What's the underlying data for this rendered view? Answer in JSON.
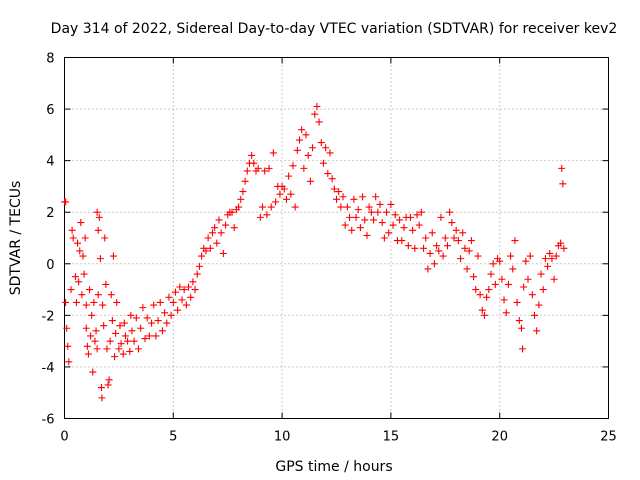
{
  "chart_data": {
    "type": "scatter",
    "title": "Day 314 of 2022, Sidereal Day-to-day VTEC variation (SDTVAR) for receiver kev2",
    "xlabel": "GPS time / hours",
    "ylabel": "SDTVAR / TECUs",
    "xlim": [
      0,
      25
    ],
    "ylim": [
      -6,
      8
    ],
    "xticks": [
      0,
      5,
      10,
      15,
      20,
      25
    ],
    "yticks": [
      -6,
      -4,
      -2,
      0,
      2,
      4,
      6,
      8
    ],
    "grid": true,
    "marker": "+",
    "color": "#ff0000",
    "series": [
      {
        "name": "SDTVAR",
        "points": [
          [
            0.0,
            2.4
          ],
          [
            0.05,
            2.4
          ],
          [
            0.05,
            -1.5
          ],
          [
            0.1,
            -2.5
          ],
          [
            0.15,
            -3.2
          ],
          [
            0.2,
            -3.8
          ],
          [
            0.3,
            -1.0
          ],
          [
            0.35,
            1.3
          ],
          [
            0.4,
            1.0
          ],
          [
            0.5,
            -0.5
          ],
          [
            0.55,
            -1.5
          ],
          [
            0.6,
            0.8
          ],
          [
            0.65,
            -0.7
          ],
          [
            0.7,
            0.5
          ],
          [
            0.75,
            1.6
          ],
          [
            0.8,
            -1.2
          ],
          [
            0.85,
            0.3
          ],
          [
            0.9,
            -0.4
          ],
          [
            0.95,
            1.0
          ],
          [
            1.0,
            -2.5
          ],
          [
            1.0,
            -1.6
          ],
          [
            1.05,
            -3.2
          ],
          [
            1.1,
            -3.5
          ],
          [
            1.15,
            -1.0
          ],
          [
            1.2,
            -2.8
          ],
          [
            1.25,
            -2.0
          ],
          [
            1.3,
            -4.2
          ],
          [
            1.35,
            -1.5
          ],
          [
            1.4,
            -3.0
          ],
          [
            1.45,
            -2.6
          ],
          [
            1.5,
            -3.3
          ],
          [
            1.55,
            -1.2
          ],
          [
            1.5,
            2.0
          ],
          [
            1.55,
            1.3
          ],
          [
            1.6,
            1.8
          ],
          [
            1.65,
            0.2
          ],
          [
            1.7,
            -4.8
          ],
          [
            1.72,
            -5.2
          ],
          [
            1.75,
            -1.6
          ],
          [
            1.8,
            -2.4
          ],
          [
            1.85,
            1.0
          ],
          [
            1.9,
            -0.8
          ],
          [
            1.95,
            -3.3
          ],
          [
            2.0,
            -4.7
          ],
          [
            2.05,
            -4.5
          ],
          [
            2.1,
            -3.0
          ],
          [
            2.15,
            -1.2
          ],
          [
            2.2,
            -2.2
          ],
          [
            2.25,
            0.3
          ],
          [
            2.3,
            -3.6
          ],
          [
            2.35,
            -2.7
          ],
          [
            2.4,
            -1.5
          ],
          [
            2.5,
            -3.3
          ],
          [
            2.55,
            -2.4
          ],
          [
            2.6,
            -3.1
          ],
          [
            2.7,
            -3.5
          ],
          [
            2.75,
            -2.3
          ],
          [
            2.8,
            -2.8
          ],
          [
            2.9,
            -3.0
          ],
          [
            3.0,
            -3.4
          ],
          [
            3.05,
            -2.0
          ],
          [
            3.1,
            -2.6
          ],
          [
            3.2,
            -3.0
          ],
          [
            3.3,
            -2.1
          ],
          [
            3.4,
            -3.3
          ],
          [
            3.5,
            -2.5
          ],
          [
            3.6,
            -1.7
          ],
          [
            3.7,
            -2.9
          ],
          [
            3.8,
            -2.1
          ],
          [
            3.9,
            -2.8
          ],
          [
            4.0,
            -2.3
          ],
          [
            4.1,
            -1.6
          ],
          [
            4.2,
            -2.8
          ],
          [
            4.3,
            -2.2
          ],
          [
            4.4,
            -1.5
          ],
          [
            4.5,
            -2.6
          ],
          [
            4.6,
            -1.9
          ],
          [
            4.7,
            -2.3
          ],
          [
            4.8,
            -1.3
          ],
          [
            4.9,
            -2.0
          ],
          [
            5.0,
            -1.5
          ],
          [
            5.1,
            -1.1
          ],
          [
            5.2,
            -1.8
          ],
          [
            5.3,
            -0.9
          ],
          [
            5.4,
            -1.4
          ],
          [
            5.5,
            -1.0
          ],
          [
            5.6,
            -1.6
          ],
          [
            5.7,
            -0.9
          ],
          [
            5.8,
            -1.3
          ],
          [
            5.9,
            -0.7
          ],
          [
            6.0,
            -1.0
          ],
          [
            6.1,
            -0.4
          ],
          [
            6.2,
            -0.1
          ],
          [
            6.3,
            0.3
          ],
          [
            6.4,
            0.6
          ],
          [
            6.5,
            0.5
          ],
          [
            6.6,
            1.0
          ],
          [
            6.7,
            0.6
          ],
          [
            6.8,
            1.2
          ],
          [
            6.9,
            1.4
          ],
          [
            7.0,
            0.8
          ],
          [
            7.1,
            1.7
          ],
          [
            7.2,
            1.2
          ],
          [
            7.3,
            0.4
          ],
          [
            7.4,
            1.5
          ],
          [
            7.5,
            1.9
          ],
          [
            7.6,
            2.0
          ],
          [
            7.7,
            2.0
          ],
          [
            7.8,
            1.4
          ],
          [
            7.9,
            2.1
          ],
          [
            8.0,
            2.2
          ],
          [
            8.1,
            2.5
          ],
          [
            8.2,
            2.8
          ],
          [
            8.3,
            3.2
          ],
          [
            8.4,
            3.6
          ],
          [
            8.5,
            3.9
          ],
          [
            8.6,
            4.2
          ],
          [
            8.7,
            3.9
          ],
          [
            8.8,
            3.6
          ],
          [
            8.9,
            3.7
          ],
          [
            9.0,
            1.8
          ],
          [
            9.1,
            2.2
          ],
          [
            9.2,
            3.6
          ],
          [
            9.3,
            1.9
          ],
          [
            9.4,
            3.7
          ],
          [
            9.5,
            2.2
          ],
          [
            9.6,
            4.3
          ],
          [
            9.7,
            2.4
          ],
          [
            9.8,
            3.0
          ],
          [
            9.9,
            2.7
          ],
          [
            10.0,
            3.0
          ],
          [
            10.1,
            2.9
          ],
          [
            10.2,
            2.5
          ],
          [
            10.3,
            3.4
          ],
          [
            10.4,
            2.7
          ],
          [
            10.5,
            3.8
          ],
          [
            10.6,
            2.2
          ],
          [
            10.7,
            4.4
          ],
          [
            10.8,
            4.8
          ],
          [
            10.9,
            5.2
          ],
          [
            11.0,
            3.7
          ],
          [
            11.1,
            5.0
          ],
          [
            11.2,
            4.2
          ],
          [
            11.3,
            3.2
          ],
          [
            11.4,
            4.5
          ],
          [
            11.5,
            5.8
          ],
          [
            11.6,
            6.1
          ],
          [
            11.7,
            5.5
          ],
          [
            11.8,
            4.7
          ],
          [
            11.9,
            3.9
          ],
          [
            12.0,
            4.5
          ],
          [
            12.1,
            3.5
          ],
          [
            12.2,
            4.3
          ],
          [
            12.3,
            3.3
          ],
          [
            12.4,
            2.9
          ],
          [
            12.5,
            2.5
          ],
          [
            12.6,
            2.8
          ],
          [
            12.7,
            2.2
          ],
          [
            12.8,
            2.6
          ],
          [
            12.9,
            1.5
          ],
          [
            13.0,
            2.2
          ],
          [
            13.1,
            1.8
          ],
          [
            13.2,
            1.3
          ],
          [
            13.3,
            2.5
          ],
          [
            13.4,
            1.8
          ],
          [
            13.5,
            2.1
          ],
          [
            13.6,
            1.4
          ],
          [
            13.7,
            2.6
          ],
          [
            13.8,
            1.7
          ],
          [
            13.9,
            1.1
          ],
          [
            14.0,
            2.2
          ],
          [
            14.1,
            2.0
          ],
          [
            14.2,
            1.7
          ],
          [
            14.3,
            2.6
          ],
          [
            14.4,
            2.0
          ],
          [
            14.5,
            2.3
          ],
          [
            14.6,
            1.6
          ],
          [
            14.7,
            1.0
          ],
          [
            14.8,
            2.0
          ],
          [
            14.9,
            1.2
          ],
          [
            15.0,
            2.3
          ],
          [
            15.1,
            1.5
          ],
          [
            15.2,
            1.9
          ],
          [
            15.3,
            0.9
          ],
          [
            15.4,
            1.7
          ],
          [
            15.5,
            0.9
          ],
          [
            15.6,
            1.4
          ],
          [
            15.7,
            1.8
          ],
          [
            15.8,
            0.7
          ],
          [
            15.9,
            1.8
          ],
          [
            16.0,
            1.3
          ],
          [
            16.1,
            0.6
          ],
          [
            16.2,
            1.9
          ],
          [
            16.3,
            1.5
          ],
          [
            16.4,
            2.0
          ],
          [
            16.5,
            0.6
          ],
          [
            16.6,
            1.0
          ],
          [
            16.7,
            -0.2
          ],
          [
            16.8,
            0.4
          ],
          [
            16.9,
            1.2
          ],
          [
            17.0,
            0.0
          ],
          [
            17.1,
            0.7
          ],
          [
            17.2,
            0.5
          ],
          [
            17.3,
            1.8
          ],
          [
            17.4,
            0.3
          ],
          [
            17.5,
            1.0
          ],
          [
            17.6,
            0.7
          ],
          [
            17.7,
            2.0
          ],
          [
            17.8,
            1.6
          ],
          [
            17.9,
            1.0
          ],
          [
            18.0,
            1.3
          ],
          [
            18.1,
            0.9
          ],
          [
            18.2,
            0.2
          ],
          [
            18.3,
            1.2
          ],
          [
            18.4,
            0.6
          ],
          [
            18.5,
            -0.2
          ],
          [
            18.6,
            0.5
          ],
          [
            18.7,
            0.9
          ],
          [
            18.8,
            -0.5
          ],
          [
            18.9,
            -1.0
          ],
          [
            19.0,
            0.3
          ],
          [
            19.1,
            -1.2
          ],
          [
            19.2,
            -1.8
          ],
          [
            19.3,
            -2.0
          ],
          [
            19.4,
            -1.3
          ],
          [
            19.5,
            -1.0
          ],
          [
            19.6,
            -0.4
          ],
          [
            19.7,
            0.0
          ],
          [
            19.8,
            -0.8
          ],
          [
            19.9,
            0.2
          ],
          [
            20.0,
            0.1
          ],
          [
            20.1,
            -0.6
          ],
          [
            20.2,
            -1.4
          ],
          [
            20.3,
            -1.9
          ],
          [
            20.4,
            -0.8
          ],
          [
            20.5,
            0.3
          ],
          [
            20.6,
            -0.2
          ],
          [
            20.7,
            0.9
          ],
          [
            20.8,
            -1.5
          ],
          [
            20.9,
            -2.2
          ],
          [
            21.0,
            -2.5
          ],
          [
            21.05,
            -3.3
          ],
          [
            21.1,
            -0.9
          ],
          [
            21.2,
            0.1
          ],
          [
            21.3,
            -0.6
          ],
          [
            21.4,
            0.3
          ],
          [
            21.5,
            -1.2
          ],
          [
            21.6,
            -2.0
          ],
          [
            21.7,
            -2.6
          ],
          [
            21.8,
            -1.6
          ],
          [
            21.9,
            -0.4
          ],
          [
            22.0,
            -1.0
          ],
          [
            22.1,
            0.2
          ],
          [
            22.2,
            -0.1
          ],
          [
            22.3,
            0.4
          ],
          [
            22.4,
            0.2
          ],
          [
            22.5,
            -0.6
          ],
          [
            22.6,
            0.3
          ],
          [
            22.7,
            0.7
          ],
          [
            22.8,
            0.8
          ],
          [
            22.85,
            3.7
          ],
          [
            22.9,
            3.1
          ],
          [
            22.95,
            0.6
          ]
        ]
      }
    ]
  }
}
